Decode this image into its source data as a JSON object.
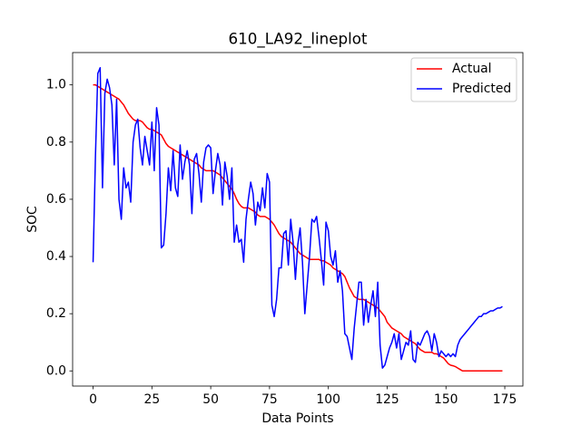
{
  "chart_data": {
    "type": "line",
    "title": "610_LA92_lineplot",
    "xlabel": "Data Points",
    "ylabel": "SOC",
    "x": [
      0,
      1,
      2,
      3,
      4,
      5,
      6,
      7,
      8,
      9,
      10,
      11,
      12,
      13,
      14,
      15,
      16,
      17,
      18,
      19,
      20,
      21,
      22,
      23,
      24,
      25,
      26,
      27,
      28,
      29,
      30,
      31,
      32,
      33,
      34,
      35,
      36,
      37,
      38,
      39,
      40,
      41,
      42,
      43,
      44,
      45,
      46,
      47,
      48,
      49,
      50,
      51,
      52,
      53,
      54,
      55,
      56,
      57,
      58,
      59,
      60,
      61,
      62,
      63,
      64,
      65,
      66,
      67,
      68,
      69,
      70,
      71,
      72,
      73,
      74,
      75,
      76,
      77,
      78,
      79,
      80,
      81,
      82,
      83,
      84,
      85,
      86,
      87,
      88,
      89,
      90,
      91,
      92,
      93,
      94,
      95,
      96,
      97,
      98,
      99,
      100,
      101,
      102,
      103,
      104,
      105,
      106,
      107,
      108,
      109,
      110,
      111,
      112,
      113,
      114,
      115,
      116,
      117,
      118,
      119,
      120,
      121,
      122,
      123,
      124,
      125,
      126,
      127,
      128,
      129,
      130,
      131,
      132,
      133,
      134,
      135,
      136,
      137,
      138,
      139,
      140,
      141,
      142,
      143,
      144,
      145,
      146,
      147,
      148,
      149,
      150,
      151,
      152,
      153,
      154,
      155,
      156,
      157,
      158,
      159,
      160,
      161,
      162,
      163,
      164,
      165,
      166,
      167,
      168,
      169,
      170,
      171,
      172,
      173,
      174
    ],
    "series": [
      {
        "name": "Actual",
        "color": "#ff0000",
        "values": [
          1.0,
          1.0,
          0.995,
          0.99,
          0.985,
          0.98,
          0.975,
          0.97,
          0.965,
          0.96,
          0.955,
          0.95,
          0.94,
          0.93,
          0.915,
          0.9,
          0.89,
          0.88,
          0.875,
          0.875,
          0.875,
          0.87,
          0.86,
          0.85,
          0.845,
          0.845,
          0.84,
          0.835,
          0.83,
          0.825,
          0.81,
          0.795,
          0.785,
          0.78,
          0.775,
          0.77,
          0.765,
          0.76,
          0.755,
          0.75,
          0.745,
          0.74,
          0.735,
          0.73,
          0.725,
          0.72,
          0.71,
          0.705,
          0.7,
          0.7,
          0.7,
          0.7,
          0.695,
          0.69,
          0.685,
          0.675,
          0.665,
          0.655,
          0.645,
          0.635,
          0.62,
          0.6,
          0.585,
          0.575,
          0.57,
          0.57,
          0.57,
          0.565,
          0.56,
          0.555,
          0.545,
          0.54,
          0.54,
          0.54,
          0.535,
          0.53,
          0.52,
          0.51,
          0.495,
          0.48,
          0.47,
          0.465,
          0.46,
          0.455,
          0.45,
          0.44,
          0.43,
          0.42,
          0.41,
          0.405,
          0.4,
          0.395,
          0.39,
          0.39,
          0.39,
          0.39,
          0.39,
          0.385,
          0.385,
          0.38,
          0.375,
          0.37,
          0.36,
          0.355,
          0.35,
          0.345,
          0.34,
          0.33,
          0.31,
          0.29,
          0.275,
          0.26,
          0.255,
          0.25,
          0.25,
          0.25,
          0.245,
          0.24,
          0.235,
          0.23,
          0.225,
          0.22,
          0.21,
          0.2,
          0.19,
          0.17,
          0.16,
          0.15,
          0.145,
          0.14,
          0.135,
          0.13,
          0.12,
          0.115,
          0.11,
          0.105,
          0.1,
          0.095,
          0.085,
          0.075,
          0.07,
          0.065,
          0.065,
          0.065,
          0.065,
          0.06,
          0.06,
          0.055,
          0.05,
          0.045,
          0.035,
          0.025,
          0.02,
          0.018,
          0.015,
          0.01,
          0.005,
          0,
          0,
          0,
          0,
          0,
          0,
          0,
          0,
          0,
          0,
          0,
          0,
          0,
          0,
          0,
          0,
          0,
          0
        ]
      },
      {
        "name": "Predicted",
        "color": "#0000ff",
        "values": [
          0.38,
          0.75,
          1.04,
          1.06,
          0.64,
          0.97,
          1.02,
          0.99,
          0.93,
          0.72,
          0.95,
          0.6,
          0.53,
          0.71,
          0.64,
          0.66,
          0.59,
          0.8,
          0.86,
          0.88,
          0.78,
          0.72,
          0.82,
          0.77,
          0.72,
          0.87,
          0.7,
          0.92,
          0.86,
          0.43,
          0.44,
          0.55,
          0.71,
          0.63,
          0.77,
          0.64,
          0.61,
          0.79,
          0.67,
          0.73,
          0.77,
          0.72,
          0.55,
          0.74,
          0.76,
          0.69,
          0.59,
          0.73,
          0.78,
          0.79,
          0.78,
          0.62,
          0.7,
          0.76,
          0.72,
          0.58,
          0.73,
          0.68,
          0.6,
          0.71,
          0.45,
          0.51,
          0.45,
          0.46,
          0.38,
          0.53,
          0.6,
          0.66,
          0.62,
          0.51,
          0.59,
          0.56,
          0.64,
          0.57,
          0.69,
          0.66,
          0.23,
          0.19,
          0.25,
          0.36,
          0.36,
          0.48,
          0.49,
          0.37,
          0.53,
          0.45,
          0.32,
          0.44,
          0.5,
          0.38,
          0.2,
          0.3,
          0.4,
          0.53,
          0.52,
          0.54,
          0.47,
          0.39,
          0.3,
          0.52,
          0.49,
          0.4,
          0.37,
          0.42,
          0.31,
          0.35,
          0.28,
          0.13,
          0.12,
          0.08,
          0.04,
          0.15,
          0.23,
          0.31,
          0.31,
          0.16,
          0.25,
          0.17,
          0.23,
          0.28,
          0.19,
          0.31,
          0.09,
          0.01,
          0.02,
          0.05,
          0.08,
          0.1,
          0.13,
          0.08,
          0.13,
          0.04,
          0.07,
          0.1,
          0.09,
          0.14,
          0.04,
          0.03,
          0.1,
          0.09,
          0.11,
          0.13,
          0.14,
          0.12,
          0.07,
          0.13,
          0.1,
          0.05,
          0.07,
          0.06,
          0.05,
          0.06,
          0.05,
          0.06,
          0.05,
          0.09,
          0.11,
          0.12,
          0.13,
          0.14,
          0.15,
          0.16,
          0.17,
          0.18,
          0.19,
          0.19,
          0.2,
          0.2,
          0.205,
          0.21,
          0.21,
          0.215,
          0.22,
          0.22,
          0.225
        ]
      }
    ],
    "xlim": [
      -8.7,
      182.7
    ],
    "ylim": [
      -0.053,
      1.113
    ],
    "xticks": [
      0,
      25,
      50,
      75,
      100,
      125,
      150,
      175
    ],
    "yticks": [
      {
        "value": 0,
        "label": "0.0"
      },
      {
        "value": 0.2,
        "label": "0.2"
      },
      {
        "value": 0.4,
        "label": "0.4"
      },
      {
        "value": 0.6,
        "label": "0.6"
      },
      {
        "value": 0.8,
        "label": "0.8"
      },
      {
        "value": 1.0,
        "label": "1.0"
      }
    ],
    "legend": "upper right"
  }
}
